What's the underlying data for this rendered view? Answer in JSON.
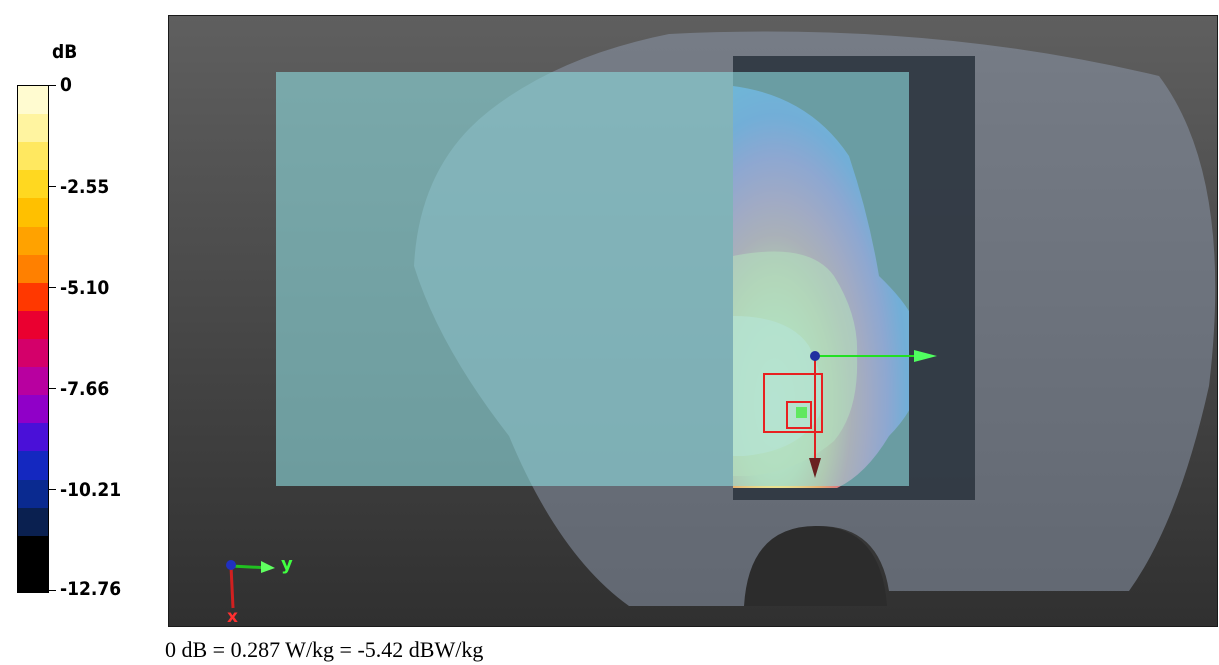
{
  "legend": {
    "unit": "dB",
    "ticks": [
      "0",
      "-2.55",
      "-5.10",
      "-7.66",
      "-10.21",
      "-12.76"
    ],
    "colors": [
      "#fffbd0",
      "#fff4a0",
      "#ffe860",
      "#ffd820",
      "#ffc000",
      "#ffa200",
      "#ff8000",
      "#ff3800",
      "#ea0030",
      "#d4006a",
      "#b800a0",
      "#9000c8",
      "#4a10d8",
      "#1428c0",
      "#0a2a90",
      "#0a2050",
      "#000000",
      "#000000"
    ]
  },
  "viewport": {
    "axes": {
      "y_label": "y",
      "x_label": "x"
    }
  },
  "footer": {
    "text": "0 dB = 0.287 W/kg = -5.42 dBW/kg"
  }
}
